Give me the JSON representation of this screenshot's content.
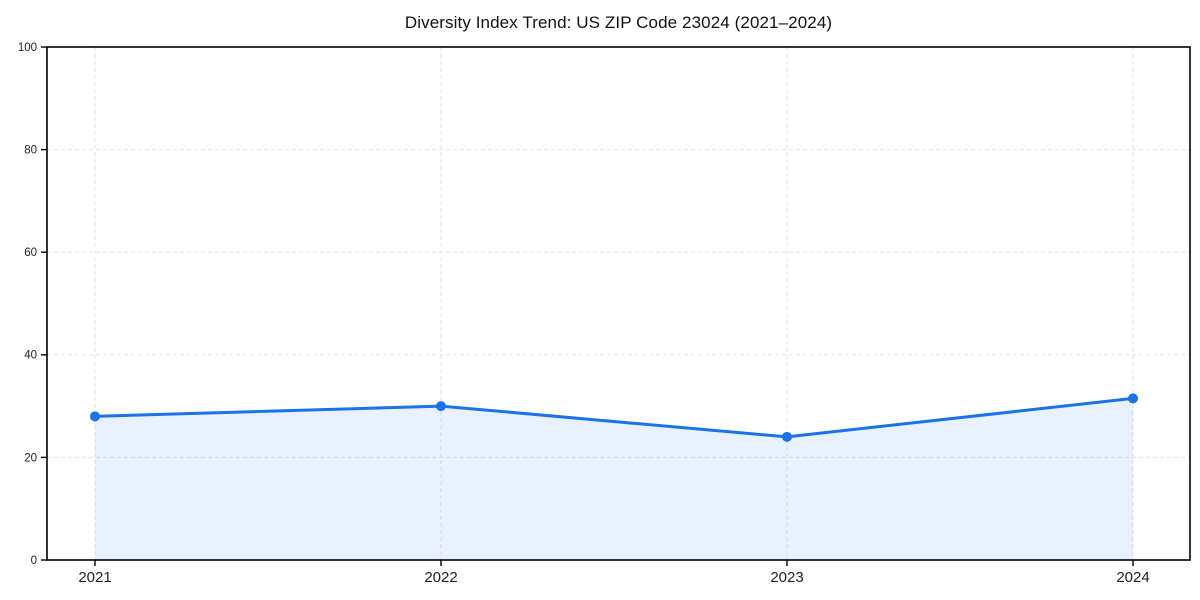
{
  "chart": {
    "title": "Diversity Index Trend: US ZIP Code 23024 (2021–2024)"
  },
  "chart_data": {
    "type": "line",
    "title": "Diversity Index Trend: US ZIP Code 23024 (2021–2024)",
    "categories": [
      "2021",
      "2022",
      "2023",
      "2024"
    ],
    "series": [
      {
        "name": "Diversity Index",
        "values": [
          28,
          30,
          24,
          31.5
        ]
      }
    ],
    "xlabel": "",
    "ylabel": "",
    "ylim": [
      0,
      100
    ],
    "y_ticks": [
      0,
      20,
      40,
      60,
      80,
      100
    ],
    "grid": true,
    "grid_style": "dashed",
    "legend": false,
    "area_fill_under_line": true,
    "colors": {
      "line": "#1a73e8",
      "marker": "#1a73e8",
      "area_fill": "rgba(26,115,232,0.10)",
      "grid": "#e3e3e3",
      "spine": "#000000",
      "tick_label": "#222222",
      "title": "#111111",
      "background": "#ffffff"
    }
  }
}
